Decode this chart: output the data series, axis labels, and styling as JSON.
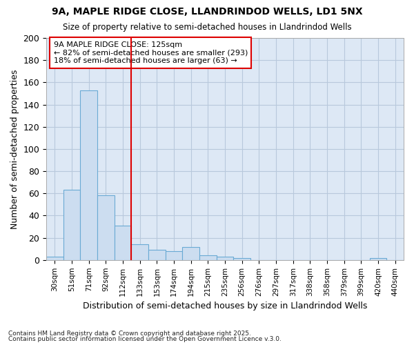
{
  "title1": "9A, MAPLE RIDGE CLOSE, LLANDRINDOD WELLS, LD1 5NX",
  "title2": "Size of property relative to semi-detached houses in Llandrindod Wells",
  "xlabel": "Distribution of semi-detached houses by size in Llandrindod Wells",
  "ylabel": "Number of semi-detached properties",
  "categories": [
    "30sqm",
    "51sqm",
    "71sqm",
    "92sqm",
    "112sqm",
    "133sqm",
    "153sqm",
    "174sqm",
    "194sqm",
    "215sqm",
    "235sqm",
    "256sqm",
    "276sqm",
    "297sqm",
    "317sqm",
    "338sqm",
    "358sqm",
    "379sqm",
    "399sqm",
    "420sqm",
    "440sqm"
  ],
  "values": [
    3,
    63,
    153,
    58,
    31,
    14,
    9,
    8,
    12,
    4,
    3,
    2,
    0,
    0,
    0,
    0,
    0,
    0,
    0,
    2,
    0
  ],
  "bar_color": "#ccddf0",
  "bar_edge_color": "#6aaad4",
  "property_label": "9A MAPLE RIDGE CLOSE: 125sqm",
  "pct_smaller": 82,
  "count_smaller": 293,
  "pct_larger": 18,
  "count_larger": 63,
  "annotation_box_color": "#ffffff",
  "annotation_box_edge_color": "#dd0000",
  "vline_color": "#dd0000",
  "ylim": [
    0,
    200
  ],
  "yticks": [
    0,
    20,
    40,
    60,
    80,
    100,
    120,
    140,
    160,
    180,
    200
  ],
  "grid_color": "#b8c8dc",
  "bg_color": "#dde8f5",
  "fig_bg_color": "#ffffff",
  "footnote1": "Contains HM Land Registry data © Crown copyright and database right 2025.",
  "footnote2": "Contains public sector information licensed under the Open Government Licence v.3.0."
}
